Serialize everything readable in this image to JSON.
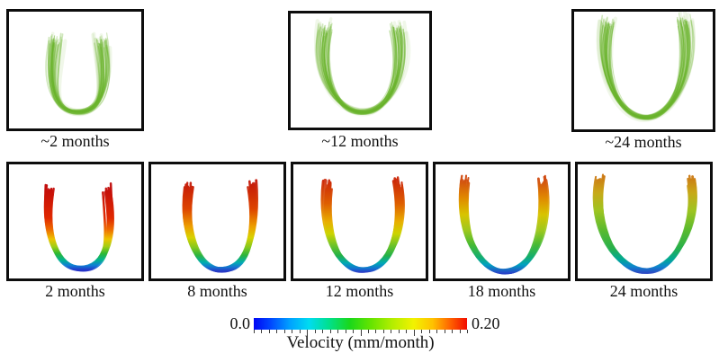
{
  "figure": {
    "top_row": {
      "panels": [
        {
          "label": "~2 months"
        },
        {
          "label": "~12 months"
        },
        {
          "label": "~24 months"
        }
      ]
    },
    "bottom_row": {
      "panels": [
        {
          "label": "2 months"
        },
        {
          "label": "8 months"
        },
        {
          "label": "12 months"
        },
        {
          "label": "18 months"
        },
        {
          "label": "24 months"
        }
      ]
    },
    "colorbar": {
      "min_label": "0.0",
      "max_label": "0.20",
      "title": "Velocity (mm/month)"
    }
  },
  "colors": {
    "fiber_green": "#6ab32c",
    "panel_border": "#0d0d0d",
    "colorbar_gradient": [
      [
        "0",
        "#0006f4"
      ],
      [
        "0.08",
        "#0048ff"
      ],
      [
        "0.17",
        "#00a2ff"
      ],
      [
        "0.26",
        "#00dcf0"
      ],
      [
        "0.35",
        "#00e090"
      ],
      [
        "0.45",
        "#1ad81a"
      ],
      [
        "0.55",
        "#66e400"
      ],
      [
        "0.65",
        "#b4ee00"
      ],
      [
        "0.75",
        "#f2f200"
      ],
      [
        "0.84",
        "#ffc000"
      ],
      [
        "0.92",
        "#ff6400"
      ],
      [
        "1",
        "#f20c00"
      ]
    ],
    "fiber_gradients": [
      [
        [
          "0",
          "#c00a0a"
        ],
        [
          "0.38",
          "#e02800"
        ],
        [
          "0.52",
          "#ee6e00"
        ],
        [
          "0.63",
          "#edc400"
        ],
        [
          "0.72",
          "#9ecd14"
        ],
        [
          "0.80",
          "#2eb832"
        ],
        [
          "0.88",
          "#00b292"
        ],
        [
          "0.94",
          "#0f7fd4"
        ],
        [
          "1",
          "#2530c8"
        ]
      ],
      [
        [
          "0",
          "#c41808"
        ],
        [
          "0.30",
          "#dd4400"
        ],
        [
          "0.50",
          "#eda000"
        ],
        [
          "0.62",
          "#d8d200"
        ],
        [
          "0.73",
          "#84c81e"
        ],
        [
          "0.82",
          "#2cb43c"
        ],
        [
          "0.90",
          "#00aeb0"
        ],
        [
          "0.95",
          "#1478d0"
        ],
        [
          "1",
          "#2738c6"
        ]
      ],
      [
        [
          "0",
          "#cc2808"
        ],
        [
          "0.25",
          "#de5e00"
        ],
        [
          "0.45",
          "#e8ae00"
        ],
        [
          "0.58",
          "#ccd400"
        ],
        [
          "0.70",
          "#72c426"
        ],
        [
          "0.82",
          "#22b148"
        ],
        [
          "0.90",
          "#00aab4"
        ],
        [
          "0.96",
          "#1372d0"
        ],
        [
          "1",
          "#2a3cc6"
        ]
      ],
      [
        [
          "0",
          "#d04a10"
        ],
        [
          "0.20",
          "#e08800"
        ],
        [
          "0.38",
          "#d8c400"
        ],
        [
          "0.55",
          "#9cc81e"
        ],
        [
          "0.70",
          "#46ba34"
        ],
        [
          "0.83",
          "#14ae6e"
        ],
        [
          "0.91",
          "#00a2c0"
        ],
        [
          "1",
          "#2844c8"
        ]
      ],
      [
        [
          "0",
          "#cc7a14"
        ],
        [
          "0.16",
          "#c8a818"
        ],
        [
          "0.35",
          "#9ec420"
        ],
        [
          "0.55",
          "#5aba2e"
        ],
        [
          "0.74",
          "#28b04a"
        ],
        [
          "0.86",
          "#00a896"
        ],
        [
          "0.93",
          "#0d86cc"
        ],
        [
          "1",
          "#2c48c4"
        ]
      ]
    ]
  },
  "chart_data": {
    "type": "multi-panel fiber-tract figure with colorbar",
    "top_row": {
      "style": "green fiber tract bundles (U-shaped genu tract)",
      "panel_labels": [
        "~2 months",
        "~12 months",
        "~24 months"
      ]
    },
    "bottom_row": {
      "style": "fiber tracts colored by velocity (rainbow/jet colormap, red=fast arms, blue=slow bottom)",
      "panel_labels": [
        "2 months",
        "8 months",
        "12 months",
        "18 months",
        "24 months"
      ]
    },
    "colorbar": {
      "title": "Velocity (mm/month)",
      "min": 0.0,
      "max": 0.2,
      "colormap": "blue-cyan-green-yellow-orange-red",
      "tick_style": "minor ticks across full bar, longer ticks at 25%, 50%, 75%"
    }
  }
}
